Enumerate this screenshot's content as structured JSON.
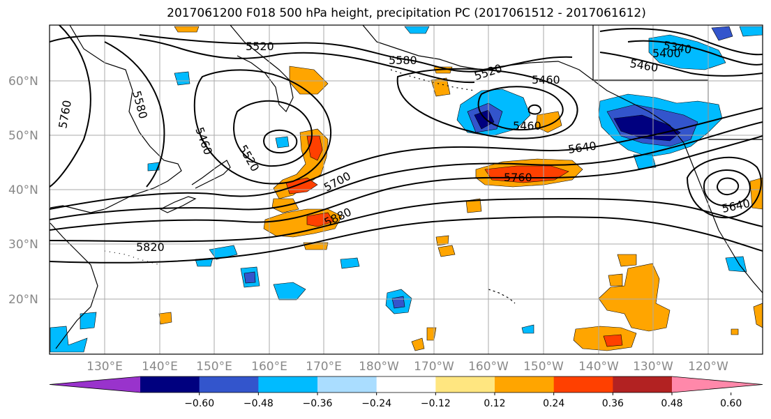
{
  "title": "2017061200 F018 500 hPa height, precipitation PC (2017061512 - 2017061612)",
  "lat_ticks": [
    "60°N",
    "50°N",
    "40°N",
    "30°N",
    "20°N"
  ],
  "lon_ticks": [
    "130°E",
    "140°E",
    "150°E",
    "160°E",
    "170°E",
    "180°W",
    "170°W",
    "160°W",
    "150°W",
    "140°W",
    "130°W",
    "120°W"
  ],
  "contour_labels": [
    "5520",
    "5580",
    "5520",
    "5460",
    "5760",
    "5580",
    "5520",
    "5460",
    "5460",
    "5640",
    "5700",
    "5760",
    "5880",
    "5820",
    "5640",
    "5400",
    "5340",
    "5460"
  ],
  "colorbar": {
    "colors": [
      "#9933cc",
      "#00007f",
      "#3355cc",
      "#00bbff",
      "#aaddff",
      "#ffffff",
      "#ffe680",
      "#ffa500",
      "#ff4000",
      "#b22222",
      "#ff88aa"
    ],
    "labels": [
      "−0.60",
      "−0.48",
      "−0.36",
      "−0.24",
      "−0.12",
      "0.12",
      "0.24",
      "0.36",
      "0.48",
      "0.60"
    ]
  },
  "colors": {
    "land_outline": "#000000",
    "grid": "#aaaaaa",
    "contour": "#000000"
  }
}
